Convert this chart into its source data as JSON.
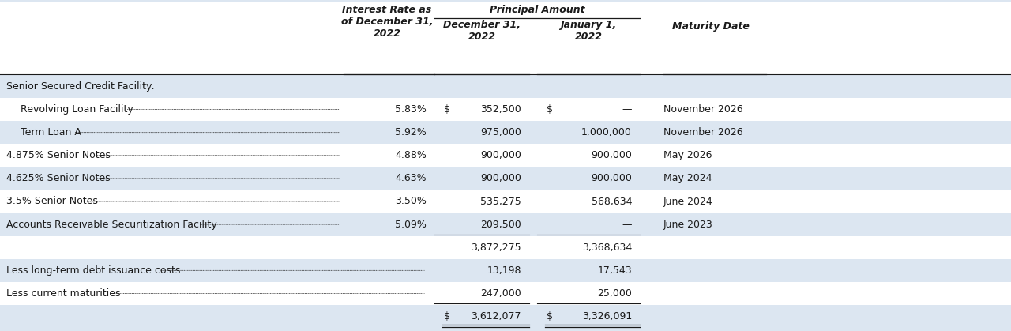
{
  "bg_color": "#dce6f1",
  "row_bg_light": "#dce6f1",
  "row_bg_white": "#ffffff",
  "text_color": "#1a1a1a",
  "col_header_interest": "Interest Rate as\nof December 31,\n2022",
  "col_header_principal": "Principal Amount",
  "col_header_dec31": "December 31,\n2022",
  "col_header_jan1": "January 1,\n2022",
  "col_header_maturity": "Maturity Date",
  "rows": [
    {
      "label": "Senior Secured Credit Facility:",
      "indent": 0,
      "rate": "",
      "dec31": "",
      "jan1": "",
      "maturity": "",
      "bg": "light",
      "dollar_dec": false,
      "dollar_jan": false,
      "underline_dec": false,
      "underline_jan": false,
      "double_ul_dec": false,
      "double_ul_jan": false,
      "dots": false
    },
    {
      "label": "Revolving Loan Facility",
      "indent": 1,
      "rate": "5.83%",
      "dec31": "352,500",
      "jan1": "—",
      "maturity": "November 2026",
      "bg": "white",
      "dollar_dec": true,
      "dollar_jan": true,
      "underline_dec": false,
      "underline_jan": false,
      "double_ul_dec": false,
      "double_ul_jan": false,
      "dots": true
    },
    {
      "label": "Term Loan A",
      "indent": 1,
      "rate": "5.92%",
      "dec31": "975,000",
      "jan1": "1,000,000",
      "maturity": "November 2026",
      "bg": "light",
      "dollar_dec": false,
      "dollar_jan": false,
      "underline_dec": false,
      "underline_jan": false,
      "double_ul_dec": false,
      "double_ul_jan": false,
      "dots": true
    },
    {
      "label": "4.875% Senior Notes",
      "indent": 0,
      "rate": "4.88%",
      "dec31": "900,000",
      "jan1": "900,000",
      "maturity": "May 2026",
      "bg": "white",
      "dollar_dec": false,
      "dollar_jan": false,
      "underline_dec": false,
      "underline_jan": false,
      "double_ul_dec": false,
      "double_ul_jan": false,
      "dots": true
    },
    {
      "label": "4.625% Senior Notes",
      "indent": 0,
      "rate": "4.63%",
      "dec31": "900,000",
      "jan1": "900,000",
      "maturity": "May 2024",
      "bg": "light",
      "dollar_dec": false,
      "dollar_jan": false,
      "underline_dec": false,
      "underline_jan": false,
      "double_ul_dec": false,
      "double_ul_jan": false,
      "dots": true
    },
    {
      "label": "3.5% Senior Notes",
      "indent": 0,
      "rate": "3.50%",
      "dec31": "535,275",
      "jan1": "568,634",
      "maturity": "June 2024",
      "bg": "white",
      "dollar_dec": false,
      "dollar_jan": false,
      "underline_dec": false,
      "underline_jan": false,
      "double_ul_dec": false,
      "double_ul_jan": false,
      "dots": true
    },
    {
      "label": "Accounts Receivable Securitization Facility",
      "indent": 0,
      "rate": "5.09%",
      "dec31": "209,500",
      "jan1": "—",
      "maturity": "June 2023",
      "bg": "light",
      "dollar_dec": false,
      "dollar_jan": false,
      "underline_dec": true,
      "underline_jan": true,
      "double_ul_dec": false,
      "double_ul_jan": false,
      "dots": true
    },
    {
      "label": "",
      "indent": 0,
      "rate": "",
      "dec31": "3,872,275",
      "jan1": "3,368,634",
      "maturity": "",
      "bg": "white",
      "dollar_dec": false,
      "dollar_jan": false,
      "underline_dec": false,
      "underline_jan": false,
      "double_ul_dec": false,
      "double_ul_jan": false,
      "dots": false
    },
    {
      "label": "Less long-term debt issuance costs",
      "indent": 0,
      "rate": "",
      "dec31": "13,198",
      "jan1": "17,543",
      "maturity": "",
      "bg": "light",
      "dollar_dec": false,
      "dollar_jan": false,
      "underline_dec": false,
      "underline_jan": false,
      "double_ul_dec": false,
      "double_ul_jan": false,
      "dots": true
    },
    {
      "label": "Less current maturities",
      "indent": 0,
      "rate": "",
      "dec31": "247,000",
      "jan1": "25,000",
      "maturity": "",
      "bg": "white",
      "dollar_dec": false,
      "dollar_jan": false,
      "underline_dec": true,
      "underline_jan": true,
      "double_ul_dec": false,
      "double_ul_jan": false,
      "dots": true
    },
    {
      "label": "",
      "indent": 0,
      "rate": "",
      "dec31": "3,612,077",
      "jan1": "3,326,091",
      "maturity": "",
      "bg": "light",
      "dollar_dec": true,
      "dollar_jan": true,
      "underline_dec": false,
      "underline_jan": false,
      "double_ul_dec": true,
      "double_ul_jan": true,
      "dots": false
    }
  ],
  "font_size": 9.0,
  "header_font_size": 9.0
}
